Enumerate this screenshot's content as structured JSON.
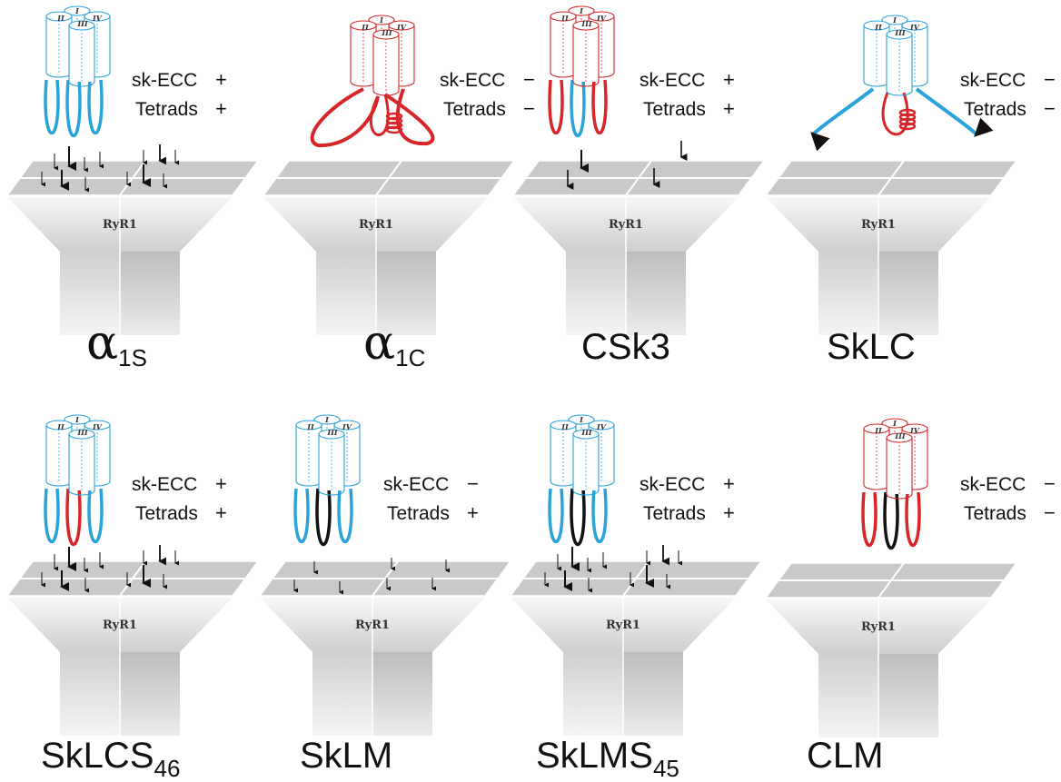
{
  "colors": {
    "skeletal": "#29a3d9",
    "cardiac": "#d6262a",
    "black_loop": "#111111"
  },
  "repeat_labels": {
    "ryr": "RyR1",
    "repeats": [
      "I",
      "II",
      "III",
      "IV"
    ]
  },
  "panels": [
    {
      "id": "a1s",
      "name": "α",
      "sub": "1S",
      "barrel_color": "skeletal",
      "loops": [
        "skeletal",
        "skeletal",
        "skeletal"
      ],
      "ecc_label": "sk-ECC",
      "ecc_sign": "+",
      "tetrad_label": "Tetrads",
      "tetrad_sign": "+",
      "arrows": "many"
    },
    {
      "id": "a1c",
      "name": "α",
      "sub": "1C",
      "barrel_color": "cardiac",
      "loops": [
        "cardiac",
        "cardiac",
        "cardiac"
      ],
      "ecc_label": "sk-ECC",
      "ecc_sign": "−",
      "tetrad_label": "Tetrads",
      "tetrad_sign": "−",
      "arrows": "none"
    },
    {
      "id": "csk3",
      "name": "CSk3",
      "sub": "",
      "barrel_color": "cardiac",
      "loops": [
        "cardiac",
        "skeletal",
        "cardiac"
      ],
      "ecc_label": "sk-ECC",
      "ecc_sign": "+",
      "tetrad_label": "Tetrads",
      "tetrad_sign": "+",
      "arrows": "few"
    },
    {
      "id": "sklc",
      "name": "SkLC",
      "sub": "",
      "barrel_color": "skeletal",
      "loops": [
        "skeletal",
        "cardiac",
        "skeletal"
      ],
      "ecc_label": "sk-ECC",
      "ecc_sign": "−",
      "tetrad_label": "Tetrads",
      "tetrad_sign": "−",
      "arrows": "none"
    },
    {
      "id": "sklcs46",
      "name": "SkLCS",
      "sub": "46",
      "barrel_color": "skeletal",
      "loops": [
        "skeletal",
        "cardiac",
        "skeletal"
      ],
      "ecc_label": "sk-ECC",
      "ecc_sign": "+",
      "tetrad_label": "Tetrads",
      "tetrad_sign": "+",
      "arrows": "many"
    },
    {
      "id": "sklm",
      "name": "SkLM",
      "sub": "",
      "barrel_color": "skeletal",
      "loops": [
        "skeletal",
        "black_loop",
        "skeletal"
      ],
      "ecc_label": "sk-ECC",
      "ecc_sign": "−",
      "tetrad_label": "Tetrads",
      "tetrad_sign": "+",
      "arrows": "small"
    },
    {
      "id": "sklms45",
      "name": "SkLMS",
      "sub": "45",
      "barrel_color": "skeletal",
      "loops": [
        "skeletal",
        "black_loop",
        "skeletal"
      ],
      "ecc_label": "sk-ECC",
      "ecc_sign": "+",
      "tetrad_label": "Tetrads",
      "tetrad_sign": "+",
      "arrows": "many"
    },
    {
      "id": "clm",
      "name": "CLM",
      "sub": "",
      "barrel_color": "cardiac",
      "loops": [
        "cardiac",
        "black_loop",
        "cardiac"
      ],
      "ecc_label": "sk-ECC",
      "ecc_sign": "−",
      "tetrad_label": "Tetrads",
      "tetrad_sign": "−",
      "arrows": "none"
    }
  ]
}
